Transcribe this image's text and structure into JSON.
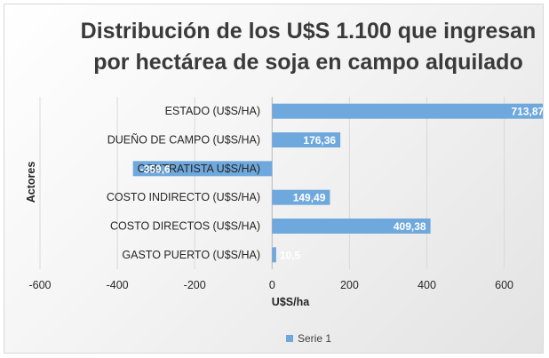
{
  "chart_data": {
    "type": "bar",
    "orientation": "horizontal",
    "title_lines": [
      "Distribución de los U$S 1.100 que ingresan",
      "por hectárea de soja en campo alquilado"
    ],
    "categories": [
      "ESTADO (U$S/HA)",
      "DUEÑO DE CAMPO (U$S/HA)",
      "CONTRATISTA U$S/HA)",
      "COSTO INDIRECTO (U$S/HA)",
      "COSTO DIRECTOS (U$S/HA)",
      "GASTO PUERTO (U$S/HA)"
    ],
    "series": [
      {
        "name": "Serie 1",
        "values": [
          713.87,
          176.36,
          -359.6,
          149.49,
          409.38,
          10.5
        ],
        "data_labels": [
          "713,87",
          "176,36",
          "-359,6",
          "149,49",
          "409,38",
          "10,5"
        ]
      }
    ],
    "xlabel": "U$S/ha",
    "ylabel": "Actores",
    "xlim": [
      -600,
      700
    ],
    "xticks": [
      -600,
      -400,
      -200,
      0,
      200,
      400,
      600
    ],
    "legend_position": "bottom",
    "bar_color": "#6fa8dc",
    "grid": true
  }
}
